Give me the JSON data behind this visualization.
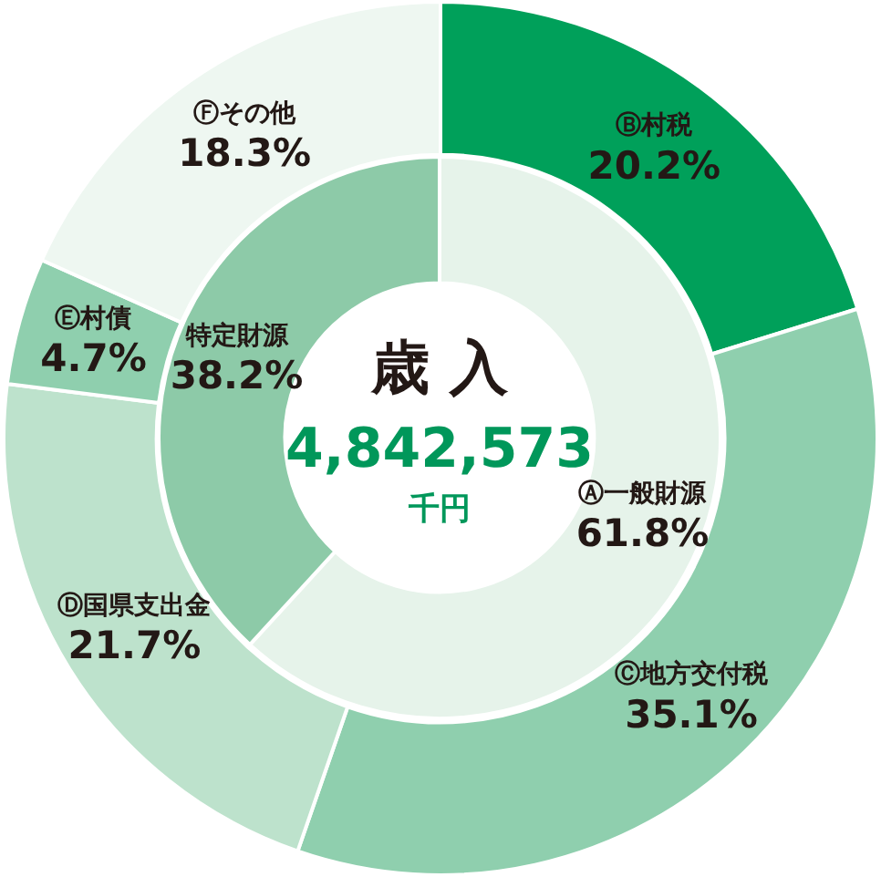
{
  "chart_data": [
    {
      "type": "donut",
      "categories": [
        "Ⓑ村税",
        "Ⓒ地方交付税",
        "Ⓓ国県支出金",
        "Ⓔ村債",
        "Ⓕその他"
      ],
      "values": [
        20.2,
        35.1,
        21.7,
        4.7,
        18.3
      ],
      "value_labels": [
        "20.2%",
        "35.1%",
        "21.7%",
        "4.7%",
        "18.3%"
      ],
      "colors": [
        "#00a05a",
        "#8fcfae",
        "#bde2cc",
        "#8fcfae",
        "#eef7f1"
      ],
      "legend": false
    },
    {
      "type": "donut",
      "title": "歳 入",
      "annotations": [
        "4,842,573",
        "千円"
      ],
      "categories": [
        "Ⓐ一般財源",
        "特定財源"
      ],
      "values": [
        61.8,
        38.2
      ],
      "value_labels": [
        "61.8%",
        "38.2%"
      ],
      "colors": [
        "#e6f3ea",
        "#8dcaa8"
      ],
      "legend": false
    }
  ]
}
